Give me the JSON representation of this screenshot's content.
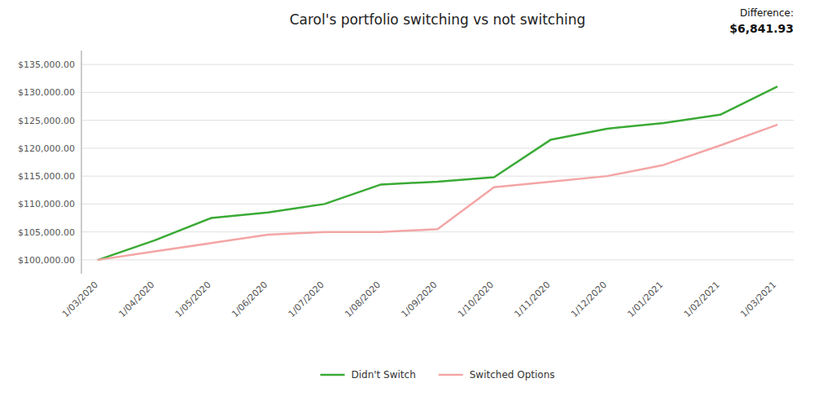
{
  "chart_data": {
    "type": "line",
    "title": "Carol's portfolio switching vs not switching",
    "categories": [
      "1/03/2020",
      "1/04/2020",
      "1/05/2020",
      "1/06/2020",
      "1/07/2020",
      "1/08/2020",
      "1/09/2020",
      "1/10/2020",
      "1/11/2020",
      "1/12/2020",
      "1/01/2021",
      "1/02/2021",
      "1/03/2021"
    ],
    "series": [
      {
        "name": "Didn't Switch",
        "color": "#3aaa35",
        "values": [
          100000,
          103500,
          107500,
          108500,
          110000,
          113500,
          114000,
          114800,
          121500,
          123500,
          124500,
          126000,
          131000
        ]
      },
      {
        "name": "Switched Options",
        "color": "#f4a5a5",
        "values": [
          100000,
          101500,
          103000,
          104500,
          105000,
          105000,
          105500,
          113000,
          114000,
          115000,
          117000,
          120500,
          124158
        ]
      }
    ],
    "ylim": [
      97500,
      137500
    ],
    "yticks": [
      {
        "value": 100000,
        "label": "$100,000.00"
      },
      {
        "value": 105000,
        "label": "$105,000.00"
      },
      {
        "value": 110000,
        "label": "$110,000.00"
      },
      {
        "value": 115000,
        "label": "$115,000.00"
      },
      {
        "value": 120000,
        "label": "$120,000.00"
      },
      {
        "value": 125000,
        "label": "$125,000.00"
      },
      {
        "value": 130000,
        "label": "$130,000.00"
      },
      {
        "value": 135000,
        "label": "$135,000.00"
      }
    ],
    "grid": true,
    "legend": "bottom",
    "annotations": [
      "Difference:",
      "$6,841.93"
    ]
  }
}
